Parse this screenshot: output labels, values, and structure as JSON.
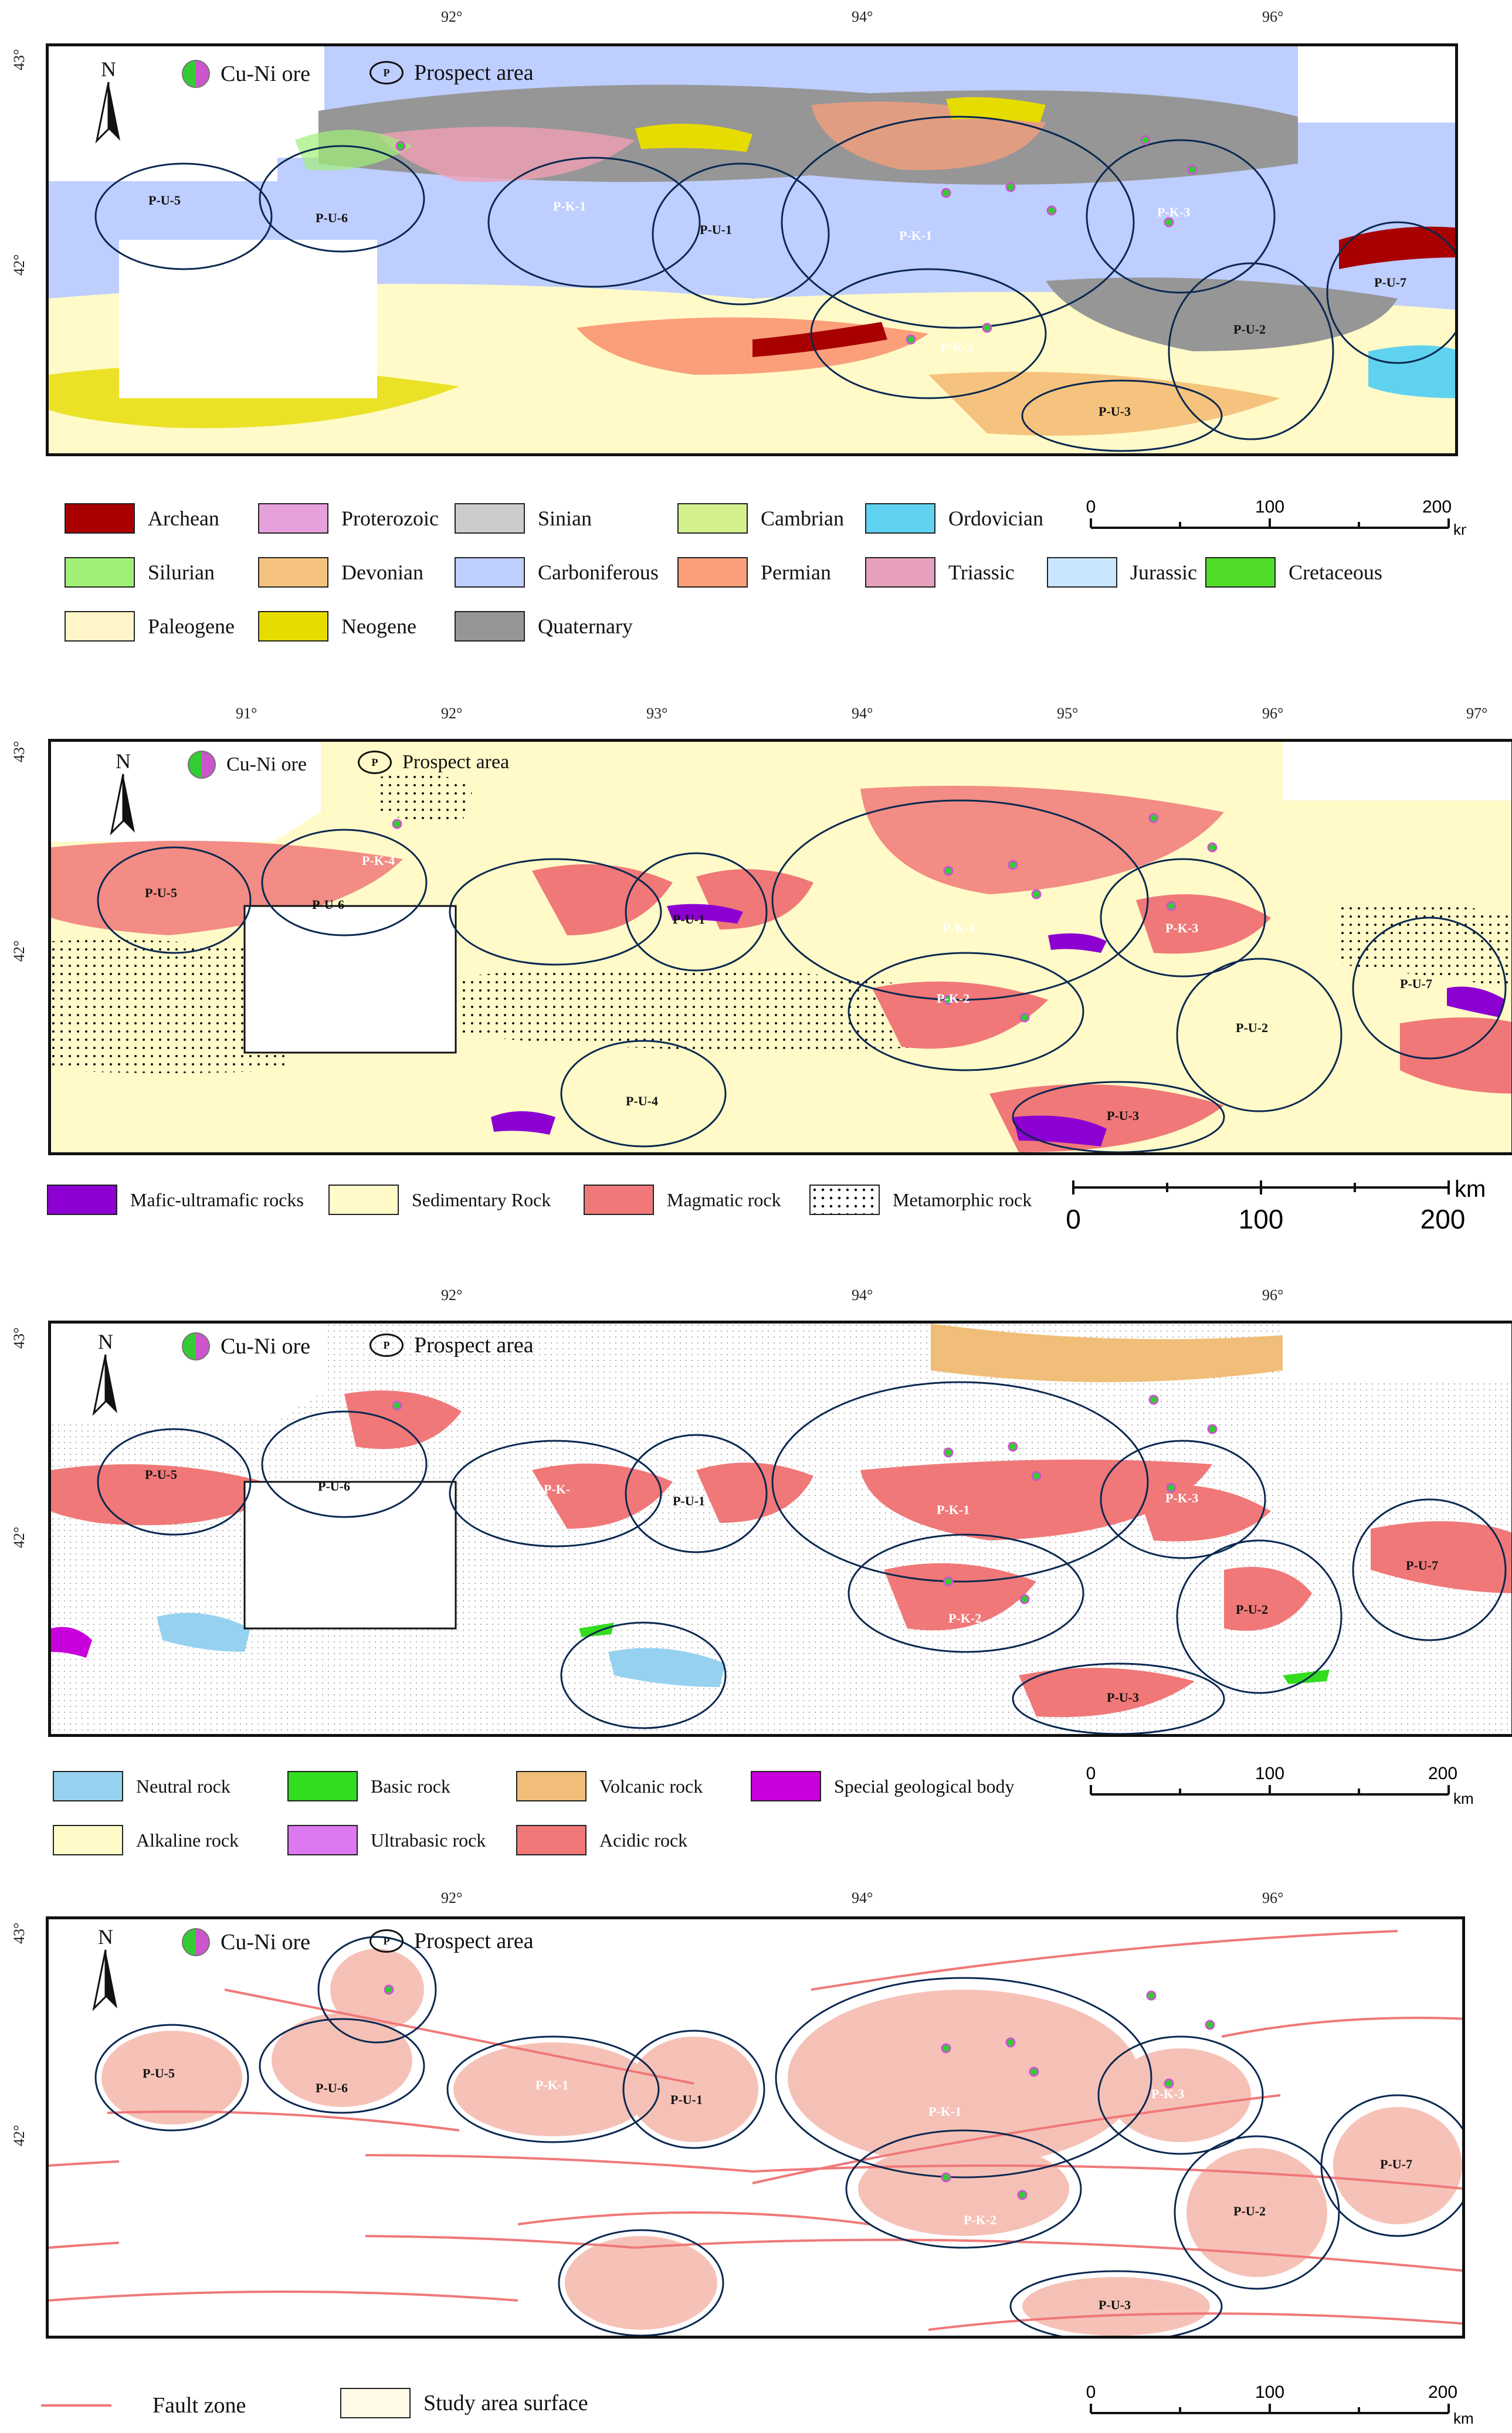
{
  "common": {
    "ore_label": "Cu-Ni ore",
    "prospect_label": "Prospect area",
    "prospect_symbol_letter": "P",
    "north_letter": "N",
    "lat_labels": [
      "43°",
      "42°"
    ],
    "scale_km_label": "km",
    "scale_values": [
      "0",
      "100",
      "200"
    ]
  },
  "panels": [
    {
      "id": "geologic-age",
      "lon_labels": [
        "92°",
        "94°",
        "96°"
      ],
      "prospects": [
        "P-U-5",
        "P-U-6",
        "P-K-1",
        "P-U-1",
        "P-K-1",
        "P-K-3",
        "P-K-2",
        "P-U-2",
        "P-U-7",
        "P-U-3"
      ],
      "legend": [
        {
          "label": "Archean",
          "color": "#a80000"
        },
        {
          "label": "Proterozoic",
          "color": "#e6a0dc"
        },
        {
          "label": "Sinian",
          "color": "#cccccc"
        },
        {
          "label": "Cambrian",
          "color": "#d2f08c"
        },
        {
          "label": "Ordovician",
          "color": "#5fd2f0"
        },
        {
          "label": "Silurian",
          "color": "#a0f078"
        },
        {
          "label": "Devonian",
          "color": "#f5c37d"
        },
        {
          "label": "Carboniferous",
          "color": "#beceff"
        },
        {
          "label": "Permian",
          "color": "#fa9f7a"
        },
        {
          "label": "Triassic",
          "color": "#e6a0be"
        },
        {
          "label": "Jurassic",
          "color": "#c8e6ff"
        },
        {
          "label": "Cretaceous",
          "color": "#50dc28"
        },
        {
          "label": "Paleogene",
          "color": "#fff5c8"
        },
        {
          "label": "Neogene",
          "color": "#e6dc00"
        },
        {
          "label": "Quaternary",
          "color": "#969696"
        }
      ]
    },
    {
      "id": "rock-type",
      "lon_labels": [
        "91°",
        "92°",
        "93°",
        "94°",
        "95°",
        "96°",
        "97°"
      ],
      "prospects": [
        "P-U-5",
        "P-U-6",
        "P-K-4",
        "P-U-1",
        "P-K-1",
        "P-K-3",
        "P-K-2",
        "P-U-2",
        "P-U-7",
        "P-U-4",
        "P-U-3"
      ],
      "legend": [
        {
          "label": "Mafic-ultramafic rocks",
          "color": "#8c00d2"
        },
        {
          "label": "Sedimentary Rock",
          "color": "#fffac8"
        },
        {
          "label": "Magmatic rock",
          "color": "#f07878"
        },
        {
          "label": "Metamorphic rock",
          "color": "#ffffff"
        }
      ]
    },
    {
      "id": "magmatic-type",
      "lon_labels": [
        "92°",
        "94°",
        "96°"
      ],
      "prospects": [
        "P-U-5",
        "P-U-6",
        "P-K-",
        "P-U-1",
        "P-K-1",
        "P-K-3",
        "P-K-2",
        "P-U-2",
        "P-U-7",
        "P-U-3"
      ],
      "legend": [
        {
          "label": "Neutral rock",
          "color": "#96d2f0"
        },
        {
          "label": "Basic rock",
          "color": "#32dc1e"
        },
        {
          "label": "Volcanic rock",
          "color": "#f0be78"
        },
        {
          "label": "Special geological body",
          "color": "#c800dc"
        },
        {
          "label": "Alkaline rock",
          "color": "#fffac8"
        },
        {
          "label": "Ultrabasic rock",
          "color": "#dc78f0"
        },
        {
          "label": "Acidic rock",
          "color": "#f07878"
        }
      ]
    },
    {
      "id": "fault-zone",
      "lon_labels": [
        "92°",
        "94°",
        "96°"
      ],
      "prospects": [
        "P-U-5",
        "P-U-6",
        "P-K-1",
        "P-U-1",
        "P-K-1",
        "P-K-3",
        "P-K-2",
        "P-U-2",
        "P-U-7",
        "P-U-3"
      ],
      "legend": [
        {
          "label": "Fault zone",
          "color": "#f07878"
        },
        {
          "label": "Study area surface",
          "color": "#fffae6"
        }
      ]
    }
  ]
}
